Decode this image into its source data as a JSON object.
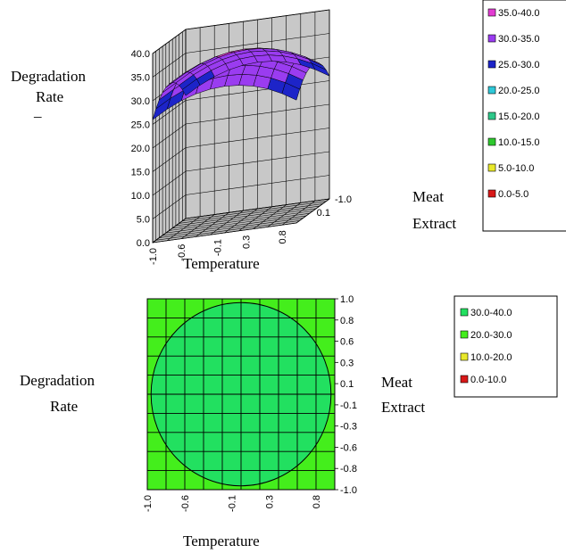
{
  "chart_data": [
    {
      "type": "surface",
      "title": "",
      "zlabel": "Degradation Rate",
      "xlabel": "Temperature",
      "ylabel": "Meat Extract",
      "z_ticks": [
        "40.0",
        "35.0",
        "30.0",
        "25.0",
        "20.0",
        "15.0",
        "10.0",
        "5.0",
        "0.0"
      ],
      "x_ticks": [
        "-1.0",
        "-0.6",
        "-0.1",
        "0.3",
        "0.8"
      ],
      "y_ticks": [
        "0.1",
        "-1.0"
      ],
      "zlim": [
        0,
        40
      ],
      "grid": true,
      "legend_position": "top-right",
      "surface_summary": {
        "center_value": 36,
        "corner_value": 26
      },
      "legend": [
        {
          "label": "35.0-40.0",
          "color": "#e23cd2"
        },
        {
          "label": "30.0-35.0",
          "color": "#9a3cf0"
        },
        {
          "label": "25.0-30.0",
          "color": "#1d24c8"
        },
        {
          "label": "20.0-25.0",
          "color": "#2ec8d8"
        },
        {
          "label": "15.0-20.0",
          "color": "#2ec88a"
        },
        {
          "label": "10.0-15.0",
          "color": "#2ec82e"
        },
        {
          "label": "5.0-10.0",
          "color": "#e8e82a"
        },
        {
          "label": "0.0-5.0",
          "color": "#d81818"
        }
      ]
    },
    {
      "type": "contour",
      "title": "",
      "zlabel": "Degradation Rate",
      "xlabel": "Temperature",
      "ylabel": "Meat Extract",
      "x_ticks": [
        "-1.0",
        "-0.6",
        "-0.1",
        "0.3",
        "0.8"
      ],
      "y_ticks": [
        "1.0",
        "0.8",
        "0.6",
        "0.3",
        "0.1",
        "-0.1",
        "-0.3",
        "-0.6",
        "-0.8",
        "-1.0"
      ],
      "xlim": [
        -1,
        1
      ],
      "ylim": [
        -1,
        1
      ],
      "grid": true,
      "legend_position": "top-right",
      "contour_circle_radius": 0.96,
      "inner_band": "30.0-40.0",
      "outer_band": "20.0-30.0",
      "legend": [
        {
          "label": "30.0-40.0",
          "color": "#22e060"
        },
        {
          "label": "20.0-30.0",
          "color": "#44ee1c"
        },
        {
          "label": "10.0-20.0",
          "color": "#e8e82a"
        },
        {
          "label": "0.0-10.0",
          "color": "#d81818"
        }
      ]
    }
  ]
}
